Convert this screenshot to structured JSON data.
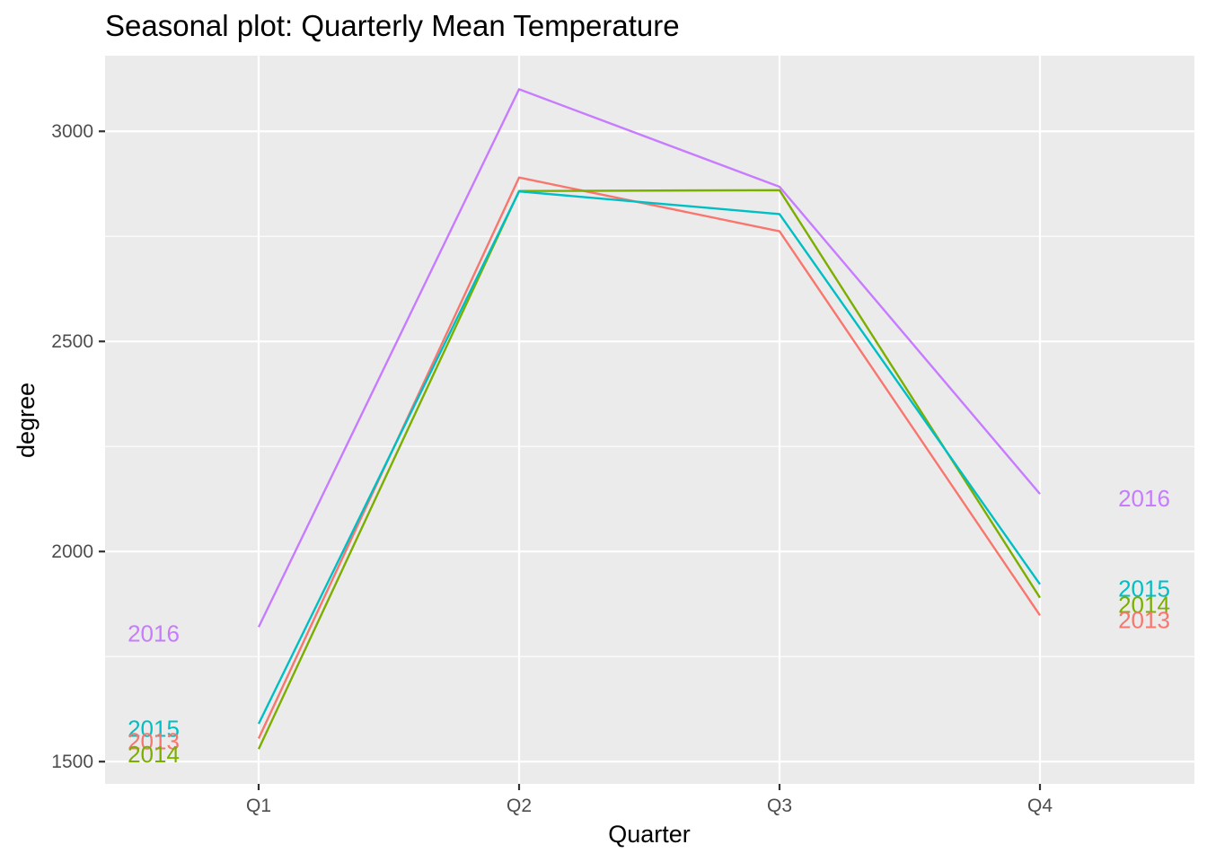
{
  "chart_data": {
    "type": "line",
    "title": "Seasonal plot: Quarterly Mean Temperature",
    "xlabel": "Quarter",
    "ylabel": "degree",
    "categories": [
      "Q1",
      "Q2",
      "Q3",
      "Q4"
    ],
    "ylim": [
      1447,
      3180
    ],
    "yticks": [
      1500,
      2000,
      2500,
      3000
    ],
    "grid": true,
    "legend": "none",
    "series": [
      {
        "name": "2013",
        "color": "#F8766D",
        "values": [
          1555,
          2890,
          2762,
          1848
        ]
      },
      {
        "name": "2014",
        "color": "#7CAE00",
        "values": [
          1530,
          2858,
          2860,
          1890
        ]
      },
      {
        "name": "2015",
        "color": "#00BFC4",
        "values": [
          1590,
          2857,
          2803,
          1922
        ]
      },
      {
        "name": "2016",
        "color": "#C77CFF",
        "values": [
          1820,
          3100,
          2868,
          2137
        ]
      }
    ],
    "labels": {
      "left": [
        {
          "series": "2016",
          "value": 1805
        },
        {
          "series": "2015",
          "value": 1578
        },
        {
          "series": "2013",
          "value": 1548
        },
        {
          "series": "2014",
          "value": 1518
        }
      ],
      "right": [
        {
          "series": "2016",
          "value": 2127
        },
        {
          "series": "2015",
          "value": 1912
        },
        {
          "series": "2014",
          "value": 1873
        },
        {
          "series": "2013",
          "value": 1837
        }
      ]
    }
  }
}
